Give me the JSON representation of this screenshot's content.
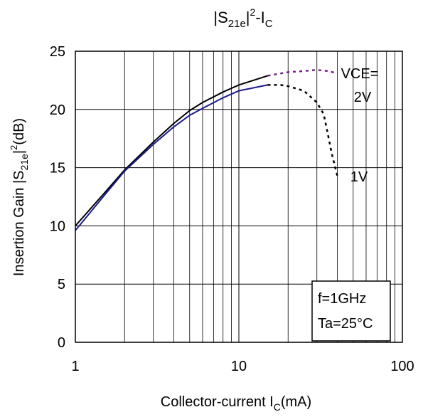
{
  "chart_data": {
    "type": "line",
    "title": {
      "main": "|S",
      "sub": "21e",
      "mid": "|",
      "sup": "2",
      "tail": "-I",
      "sub2": "C"
    },
    "xlabel": {
      "main": "Collector-current I",
      "sub": "C",
      "tail": "(mA)"
    },
    "ylabel": {
      "main": "Insertion Gain |S",
      "sub": "21e",
      "mid": "|",
      "sup": "2",
      "tail": "(dB)"
    },
    "x_scale": "log",
    "xlim": [
      1,
      100
    ],
    "ylim": [
      0,
      25
    ],
    "xticks": [
      1,
      10,
      100
    ],
    "xtick_labels": [
      "1",
      "10",
      "100"
    ],
    "yticks": [
      0,
      5,
      10,
      15,
      20,
      25
    ],
    "ytick_labels": [
      "0",
      "5",
      "10",
      "15",
      "20",
      "25"
    ],
    "grid": true,
    "series": [
      {
        "name": "2V",
        "color": "#000000",
        "measured": [
          [
            1,
            10.0
          ],
          [
            1.5,
            12.8
          ],
          [
            2,
            14.8
          ],
          [
            3,
            17.2
          ],
          [
            4,
            18.8
          ],
          [
            5,
            19.9
          ],
          [
            6,
            20.6
          ],
          [
            8,
            21.5
          ],
          [
            10,
            22.1
          ],
          [
            15,
            22.9
          ]
        ],
        "extrapolated_color": "#7a1f8a",
        "extrapolated": [
          [
            15,
            22.9
          ],
          [
            20,
            23.2
          ],
          [
            25,
            23.3
          ],
          [
            30,
            23.4
          ],
          [
            35,
            23.3
          ],
          [
            40,
            23.1
          ]
        ]
      },
      {
        "name": "1V",
        "color": "#1a1a8c",
        "measured": [
          [
            1,
            9.6
          ],
          [
            1.5,
            12.6
          ],
          [
            2,
            14.7
          ],
          [
            3,
            17.0
          ],
          [
            4,
            18.5
          ],
          [
            5,
            19.5
          ],
          [
            6,
            20.1
          ],
          [
            8,
            21.0
          ],
          [
            10,
            21.6
          ],
          [
            15,
            22.1
          ]
        ],
        "extrapolated_color": "#000000",
        "extrapolated": [
          [
            15,
            22.1
          ],
          [
            18,
            22.1
          ],
          [
            20,
            22.0
          ],
          [
            25,
            21.6
          ],
          [
            30,
            20.6
          ],
          [
            33,
            19.6
          ],
          [
            35,
            17.9
          ],
          [
            37,
            16.2
          ],
          [
            40,
            14.3
          ]
        ]
      }
    ],
    "annotations": {
      "vce_label": "VCE=",
      "vce_2v": "2V",
      "vce_1v": "1V",
      "cond_freq": "f=1GHz",
      "cond_temp": "Ta=25°C"
    }
  }
}
